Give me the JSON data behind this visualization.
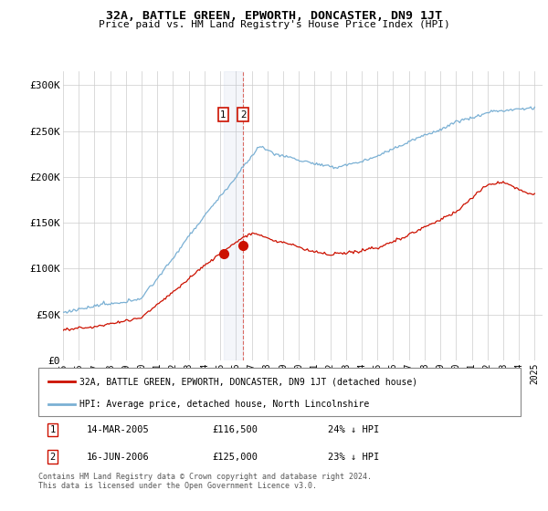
{
  "title": "32A, BATTLE GREEN, EPWORTH, DONCASTER, DN9 1JT",
  "subtitle": "Price paid vs. HM Land Registry's House Price Index (HPI)",
  "ylabel_ticks": [
    "£0",
    "£50K",
    "£100K",
    "£150K",
    "£200K",
    "£250K",
    "£300K"
  ],
  "ytick_values": [
    0,
    50000,
    100000,
    150000,
    200000,
    250000,
    300000
  ],
  "ylim": [
    0,
    315000
  ],
  "xlim_start": 1995.0,
  "xlim_end": 2025.5,
  "hpi_color": "#7ab0d4",
  "price_color": "#cc1100",
  "sale1_date": 2005.2,
  "sale1_price": 116500,
  "sale2_date": 2006.46,
  "sale2_price": 125000,
  "legend_line1": "32A, BATTLE GREEN, EPWORTH, DONCASTER, DN9 1JT (detached house)",
  "legend_line2": "HPI: Average price, detached house, North Lincolnshire",
  "table_row1": [
    "1",
    "14-MAR-2005",
    "£116,500",
    "24% ↓ HPI"
  ],
  "table_row2": [
    "2",
    "16-JUN-2006",
    "£125,000",
    "23% ↓ HPI"
  ],
  "footer": "Contains HM Land Registry data © Crown copyright and database right 2024.\nThis data is licensed under the Open Government Licence v3.0.",
  "background_color": "#ffffff",
  "grid_color": "#cccccc"
}
